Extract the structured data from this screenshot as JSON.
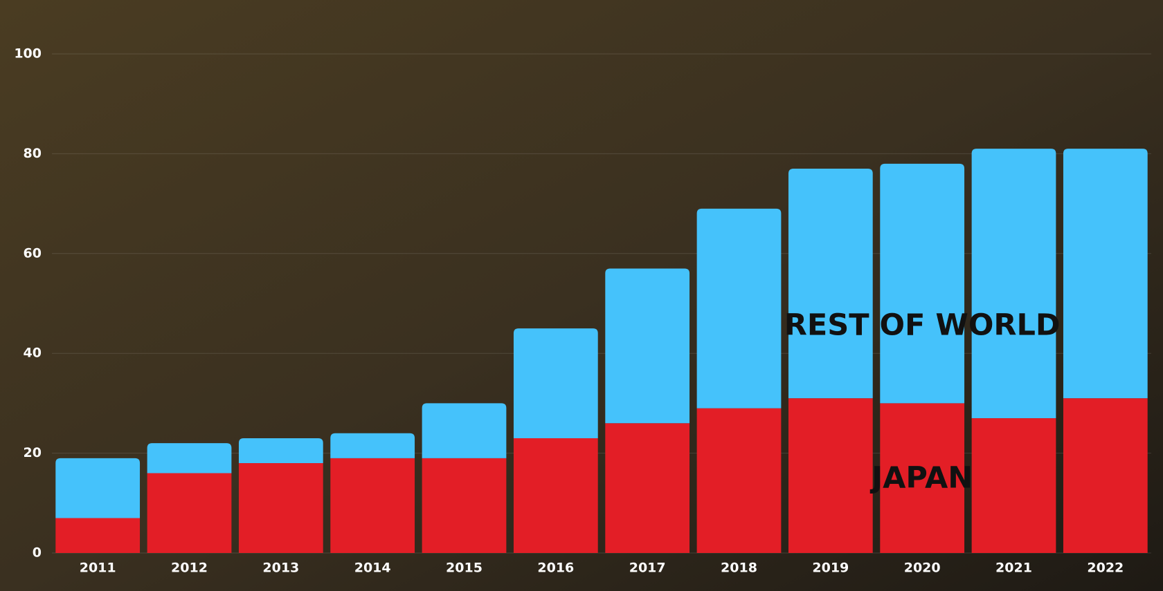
{
  "chart_data": {
    "type": "stacked_bar",
    "categories": [
      "2011",
      "2012",
      "2013",
      "2014",
      "2015",
      "2016",
      "2017",
      "2018",
      "2019",
      "2020",
      "2021",
      "2022"
    ],
    "series": [
      {
        "name": "JAPAN",
        "color": "#e31e26",
        "values": [
          7,
          16,
          18,
          19,
          19,
          23,
          26,
          29,
          31,
          30,
          27,
          31
        ]
      },
      {
        "name": "REST OF WORLD",
        "color": "#45c2fb",
        "values": [
          12,
          6,
          5,
          5,
          11,
          22,
          31,
          40,
          46,
          48,
          54,
          50
        ]
      }
    ],
    "ylim": [
      0,
      100
    ],
    "yticks": [
      0,
      20,
      40,
      60,
      80,
      100
    ],
    "grid": true
  }
}
